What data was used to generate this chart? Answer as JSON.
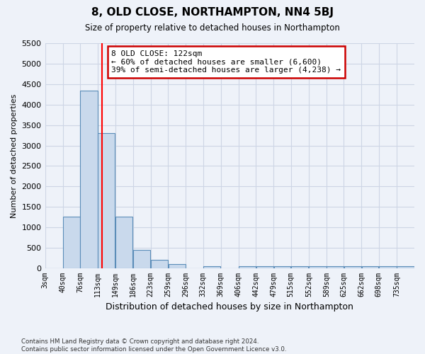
{
  "title": "8, OLD CLOSE, NORTHAMPTON, NN4 5BJ",
  "subtitle": "Size of property relative to detached houses in Northampton",
  "xlabel": "Distribution of detached houses by size in Northampton",
  "ylabel": "Number of detached properties",
  "bar_color": "#c9d9ec",
  "bar_edge_color": "#5b8db8",
  "categories": [
    "3sqm",
    "40sqm",
    "76sqm",
    "113sqm",
    "149sqm",
    "186sqm",
    "223sqm",
    "259sqm",
    "296sqm",
    "332sqm",
    "369sqm",
    "406sqm",
    "442sqm",
    "479sqm",
    "515sqm",
    "552sqm",
    "589sqm",
    "625sqm",
    "662sqm",
    "698sqm",
    "735sqm"
  ],
  "bin_edges": [
    3,
    40,
    76,
    113,
    149,
    186,
    223,
    259,
    296,
    332,
    369,
    406,
    442,
    479,
    515,
    552,
    589,
    625,
    662,
    698,
    735
  ],
  "values": [
    0,
    1250,
    4350,
    3300,
    1250,
    450,
    200,
    100,
    0,
    50,
    0,
    50,
    50,
    50,
    50,
    50,
    50,
    50,
    50,
    50,
    50
  ],
  "red_line_x": 122,
  "annotation_line1": "8 OLD CLOSE: 122sqm",
  "annotation_line2": "← 60% of detached houses are smaller (6,600)",
  "annotation_line3": "39% of semi-detached houses are larger (4,238) →",
  "annotation_box_color": "#ffffff",
  "annotation_box_edge": "#cc0000",
  "ylim": [
    0,
    5500
  ],
  "yticks": [
    0,
    500,
    1000,
    1500,
    2000,
    2500,
    3000,
    3500,
    4000,
    4500,
    5000,
    5500
  ],
  "grid_color": "#cdd5e5",
  "footnote": "Contains HM Land Registry data © Crown copyright and database right 2024.\nContains public sector information licensed under the Open Government Licence v3.0.",
  "background_color": "#eef2f9"
}
